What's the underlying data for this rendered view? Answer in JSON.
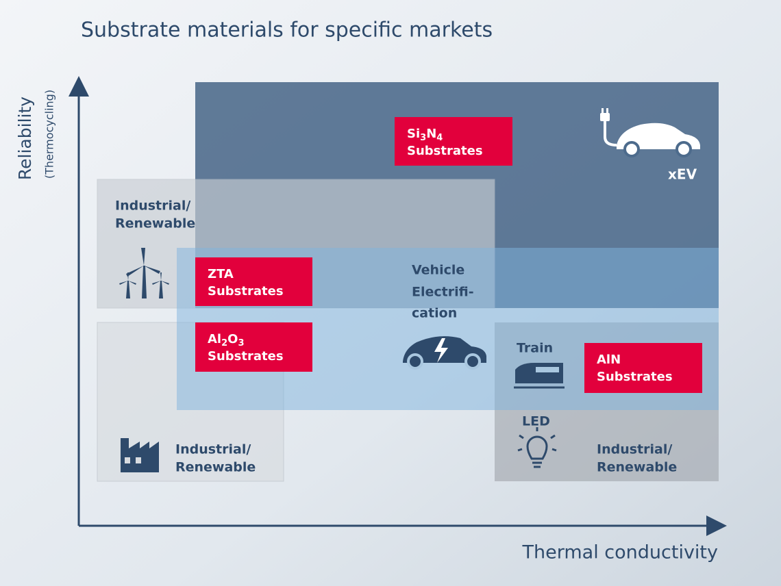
{
  "title": "Substrate materials for specific markets",
  "axes": {
    "y_label": "Reliability",
    "y_sublabel": "(Thermocycling)",
    "x_label": "Thermal conductivity"
  },
  "regions": {
    "xev": "xEV",
    "industrial_upper": [
      "Industrial/",
      "Renewable"
    ],
    "vehicle": [
      "Vehicle",
      "Electrifi-",
      "cation"
    ],
    "train": "Train",
    "led": "LED",
    "industrial_lower_left": [
      "Industrial/",
      "Renewable"
    ],
    "industrial_lower_right": [
      "Industrial/",
      "Renewable"
    ]
  },
  "substrates": [
    {
      "formula": [
        "Si",
        "3",
        "N",
        "4"
      ],
      "label": "Substrates"
    },
    {
      "formula": [
        "ZTA"
      ],
      "label": "Substrates"
    },
    {
      "formula": [
        "Al",
        "2",
        "O",
        "3"
      ],
      "label": "Substrates"
    },
    {
      "formula": [
        "AlN"
      ],
      "label": "Substrates"
    }
  ]
}
